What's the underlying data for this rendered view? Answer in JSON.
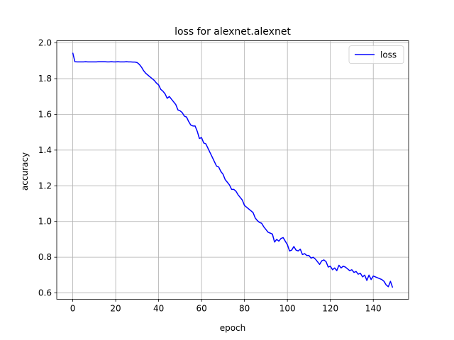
{
  "chart_data": {
    "type": "line",
    "title": "loss for alexnet.alexnet",
    "xlabel": "epoch",
    "ylabel": "accuracy",
    "x": [
      0,
      1,
      2,
      3,
      4,
      5,
      6,
      7,
      8,
      9,
      10,
      11,
      12,
      13,
      14,
      15,
      16,
      17,
      18,
      19,
      20,
      21,
      22,
      23,
      24,
      25,
      26,
      27,
      28,
      29,
      30,
      31,
      32,
      33,
      34,
      35,
      36,
      37,
      38,
      39,
      40,
      41,
      42,
      43,
      44,
      45,
      46,
      47,
      48,
      49,
      50,
      51,
      52,
      53,
      54,
      55,
      56,
      57,
      58,
      59,
      60,
      61,
      62,
      63,
      64,
      65,
      66,
      67,
      68,
      69,
      70,
      71,
      72,
      73,
      74,
      75,
      76,
      77,
      78,
      79,
      80,
      81,
      82,
      83,
      84,
      85,
      86,
      87,
      88,
      89,
      90,
      91,
      92,
      93,
      94,
      95,
      96,
      97,
      98,
      99,
      100,
      101,
      102,
      103,
      104,
      105,
      106,
      107,
      108,
      109,
      110,
      111,
      112,
      113,
      114,
      115,
      116,
      117,
      118,
      119,
      120,
      121,
      122,
      123,
      124,
      125,
      126,
      127,
      128,
      129,
      130,
      131,
      132,
      133,
      134,
      135,
      136,
      137,
      138,
      139,
      140,
      141,
      142,
      143,
      144,
      145,
      146,
      147,
      148,
      149
    ],
    "series": [
      {
        "name": "loss",
        "color": "#0000ff",
        "values": [
          1.945,
          1.895,
          1.894,
          1.894,
          1.894,
          1.894,
          1.895,
          1.894,
          1.894,
          1.894,
          1.894,
          1.894,
          1.895,
          1.895,
          1.895,
          1.895,
          1.894,
          1.894,
          1.895,
          1.894,
          1.894,
          1.895,
          1.894,
          1.894,
          1.894,
          1.895,
          1.894,
          1.894,
          1.893,
          1.893,
          1.89,
          1.88,
          1.865,
          1.845,
          1.83,
          1.82,
          1.81,
          1.8,
          1.79,
          1.775,
          1.765,
          1.74,
          1.73,
          1.715,
          1.69,
          1.7,
          1.685,
          1.67,
          1.655,
          1.625,
          1.62,
          1.61,
          1.59,
          1.585,
          1.56,
          1.54,
          1.535,
          1.535,
          1.505,
          1.465,
          1.47,
          1.44,
          1.435,
          1.41,
          1.385,
          1.36,
          1.335,
          1.31,
          1.305,
          1.28,
          1.265,
          1.235,
          1.22,
          1.205,
          1.18,
          1.18,
          1.17,
          1.15,
          1.135,
          1.12,
          1.09,
          1.08,
          1.07,
          1.06,
          1.05,
          1.02,
          1.005,
          0.995,
          0.99,
          0.97,
          0.955,
          0.94,
          0.935,
          0.93,
          0.885,
          0.9,
          0.89,
          0.905,
          0.91,
          0.89,
          0.87,
          0.835,
          0.84,
          0.86,
          0.84,
          0.835,
          0.845,
          0.815,
          0.82,
          0.81,
          0.81,
          0.795,
          0.8,
          0.79,
          0.775,
          0.76,
          0.78,
          0.785,
          0.775,
          0.745,
          0.75,
          0.73,
          0.74,
          0.725,
          0.755,
          0.74,
          0.75,
          0.745,
          0.735,
          0.725,
          0.73,
          0.715,
          0.72,
          0.705,
          0.71,
          0.69,
          0.7,
          0.67,
          0.7,
          0.675,
          0.695,
          0.69,
          0.685,
          0.68,
          0.675,
          0.665,
          0.645,
          0.635,
          0.665,
          0.63
        ]
      }
    ],
    "xlim": [
      -7.45,
      156.45
    ],
    "ylim": [
      0.565,
      2.012
    ],
    "xticks": [
      0,
      20,
      40,
      60,
      80,
      100,
      120,
      140
    ],
    "yticks": [
      0.6,
      0.8,
      {
        "value": 1.0,
        "label": "1.0"
      },
      1.2,
      1.4,
      1.6,
      1.8,
      {
        "value": 2.0,
        "label": "2.0"
      }
    ],
    "grid": true,
    "legend": "upper right"
  }
}
